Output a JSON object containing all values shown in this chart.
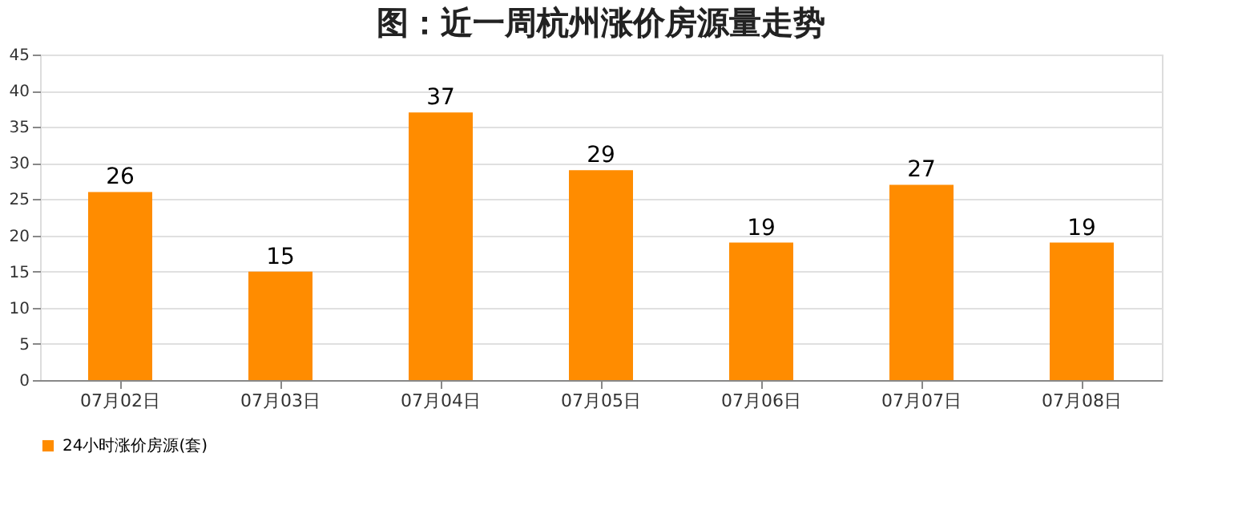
{
  "chart_data": {
    "type": "bar",
    "title": "图：近一周杭州涨价房源量走势",
    "categories": [
      "07月02日",
      "07月03日",
      "07月04日",
      "07月05日",
      "07月06日",
      "07月07日",
      "07月08日"
    ],
    "series": [
      {
        "name": "24小时涨价房源(套)",
        "color": "#ff8c00",
        "values": [
          26,
          15,
          37,
          29,
          19,
          27,
          19
        ]
      }
    ],
    "ylim": [
      0,
      45
    ],
    "yticks": [
      0,
      5,
      10,
      15,
      20,
      25,
      30,
      35,
      40,
      45
    ],
    "grid": "y",
    "legend": "bottom",
    "data_labels": true
  }
}
